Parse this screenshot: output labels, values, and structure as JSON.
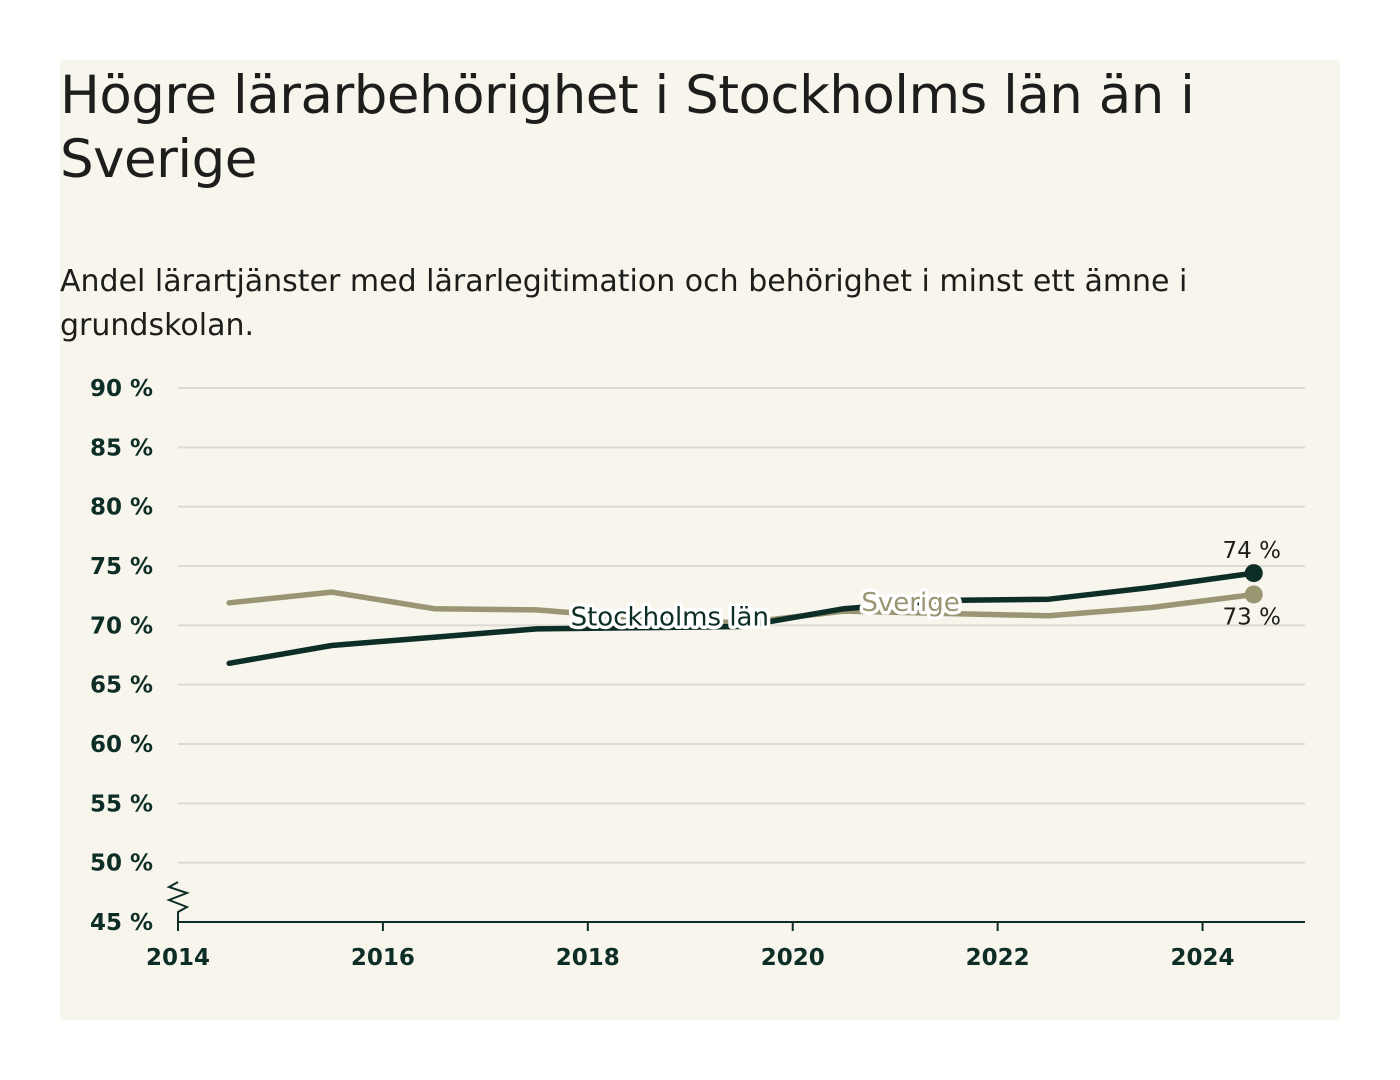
{
  "title": "Högre lärarbehörighet i Stockholms län än i Sverige",
  "subtitle": "Andel lärartjänster med lärarlegitimation och behörighet i minst ett ämne i grundskolan.",
  "colors": {
    "background": "#f7f5ec",
    "stockholm": "#0d2e27",
    "sverige": "#9a9674",
    "grid": "#dcdad3",
    "axis": "#0d2e27"
  },
  "chart_data": {
    "type": "line",
    "title": "Högre lärarbehörighet i Stockholms län än i Sverige",
    "subtitle": "Andel lärartjänster med lärarlegitimation och behörighet i minst ett ämne i grundskolan.",
    "xlabel": "",
    "ylabel": "",
    "xlim": [
      2014,
      2025
    ],
    "ylim": [
      45,
      90
    ],
    "axis_break": true,
    "grid": true,
    "x_ticks": [
      2014,
      2016,
      2018,
      2020,
      2022,
      2024
    ],
    "x_tick_labels": [
      "2014",
      "2016",
      "2018",
      "2020",
      "2022",
      "2024"
    ],
    "y_ticks": [
      45,
      50,
      55,
      60,
      65,
      70,
      75,
      80,
      85,
      90
    ],
    "y_tick_labels": [
      "45 %",
      "50 %",
      "55 %",
      "60 %",
      "65 %",
      "70 %",
      "75 %",
      "80 %",
      "85 %",
      "90 %"
    ],
    "x": [
      2014.5,
      2015.5,
      2016.5,
      2017.5,
      2018.5,
      2019.5,
      2020.5,
      2021.5,
      2022.5,
      2023.5,
      2024.5
    ],
    "series": [
      {
        "name": "Sverige",
        "color": "#9a9674",
        "values": [
          71.9,
          72.8,
          71.4,
          71.3,
          70.6,
          70.2,
          71.2,
          71.0,
          70.8,
          71.5,
          72.6
        ],
        "end_label": "73 %"
      },
      {
        "name": "Stockholms län",
        "color": "#0d2e27",
        "values": [
          66.8,
          68.3,
          69.0,
          69.7,
          69.8,
          69.9,
          71.4,
          72.1,
          72.2,
          73.2,
          74.4
        ],
        "end_label": "74 %"
      }
    ]
  }
}
